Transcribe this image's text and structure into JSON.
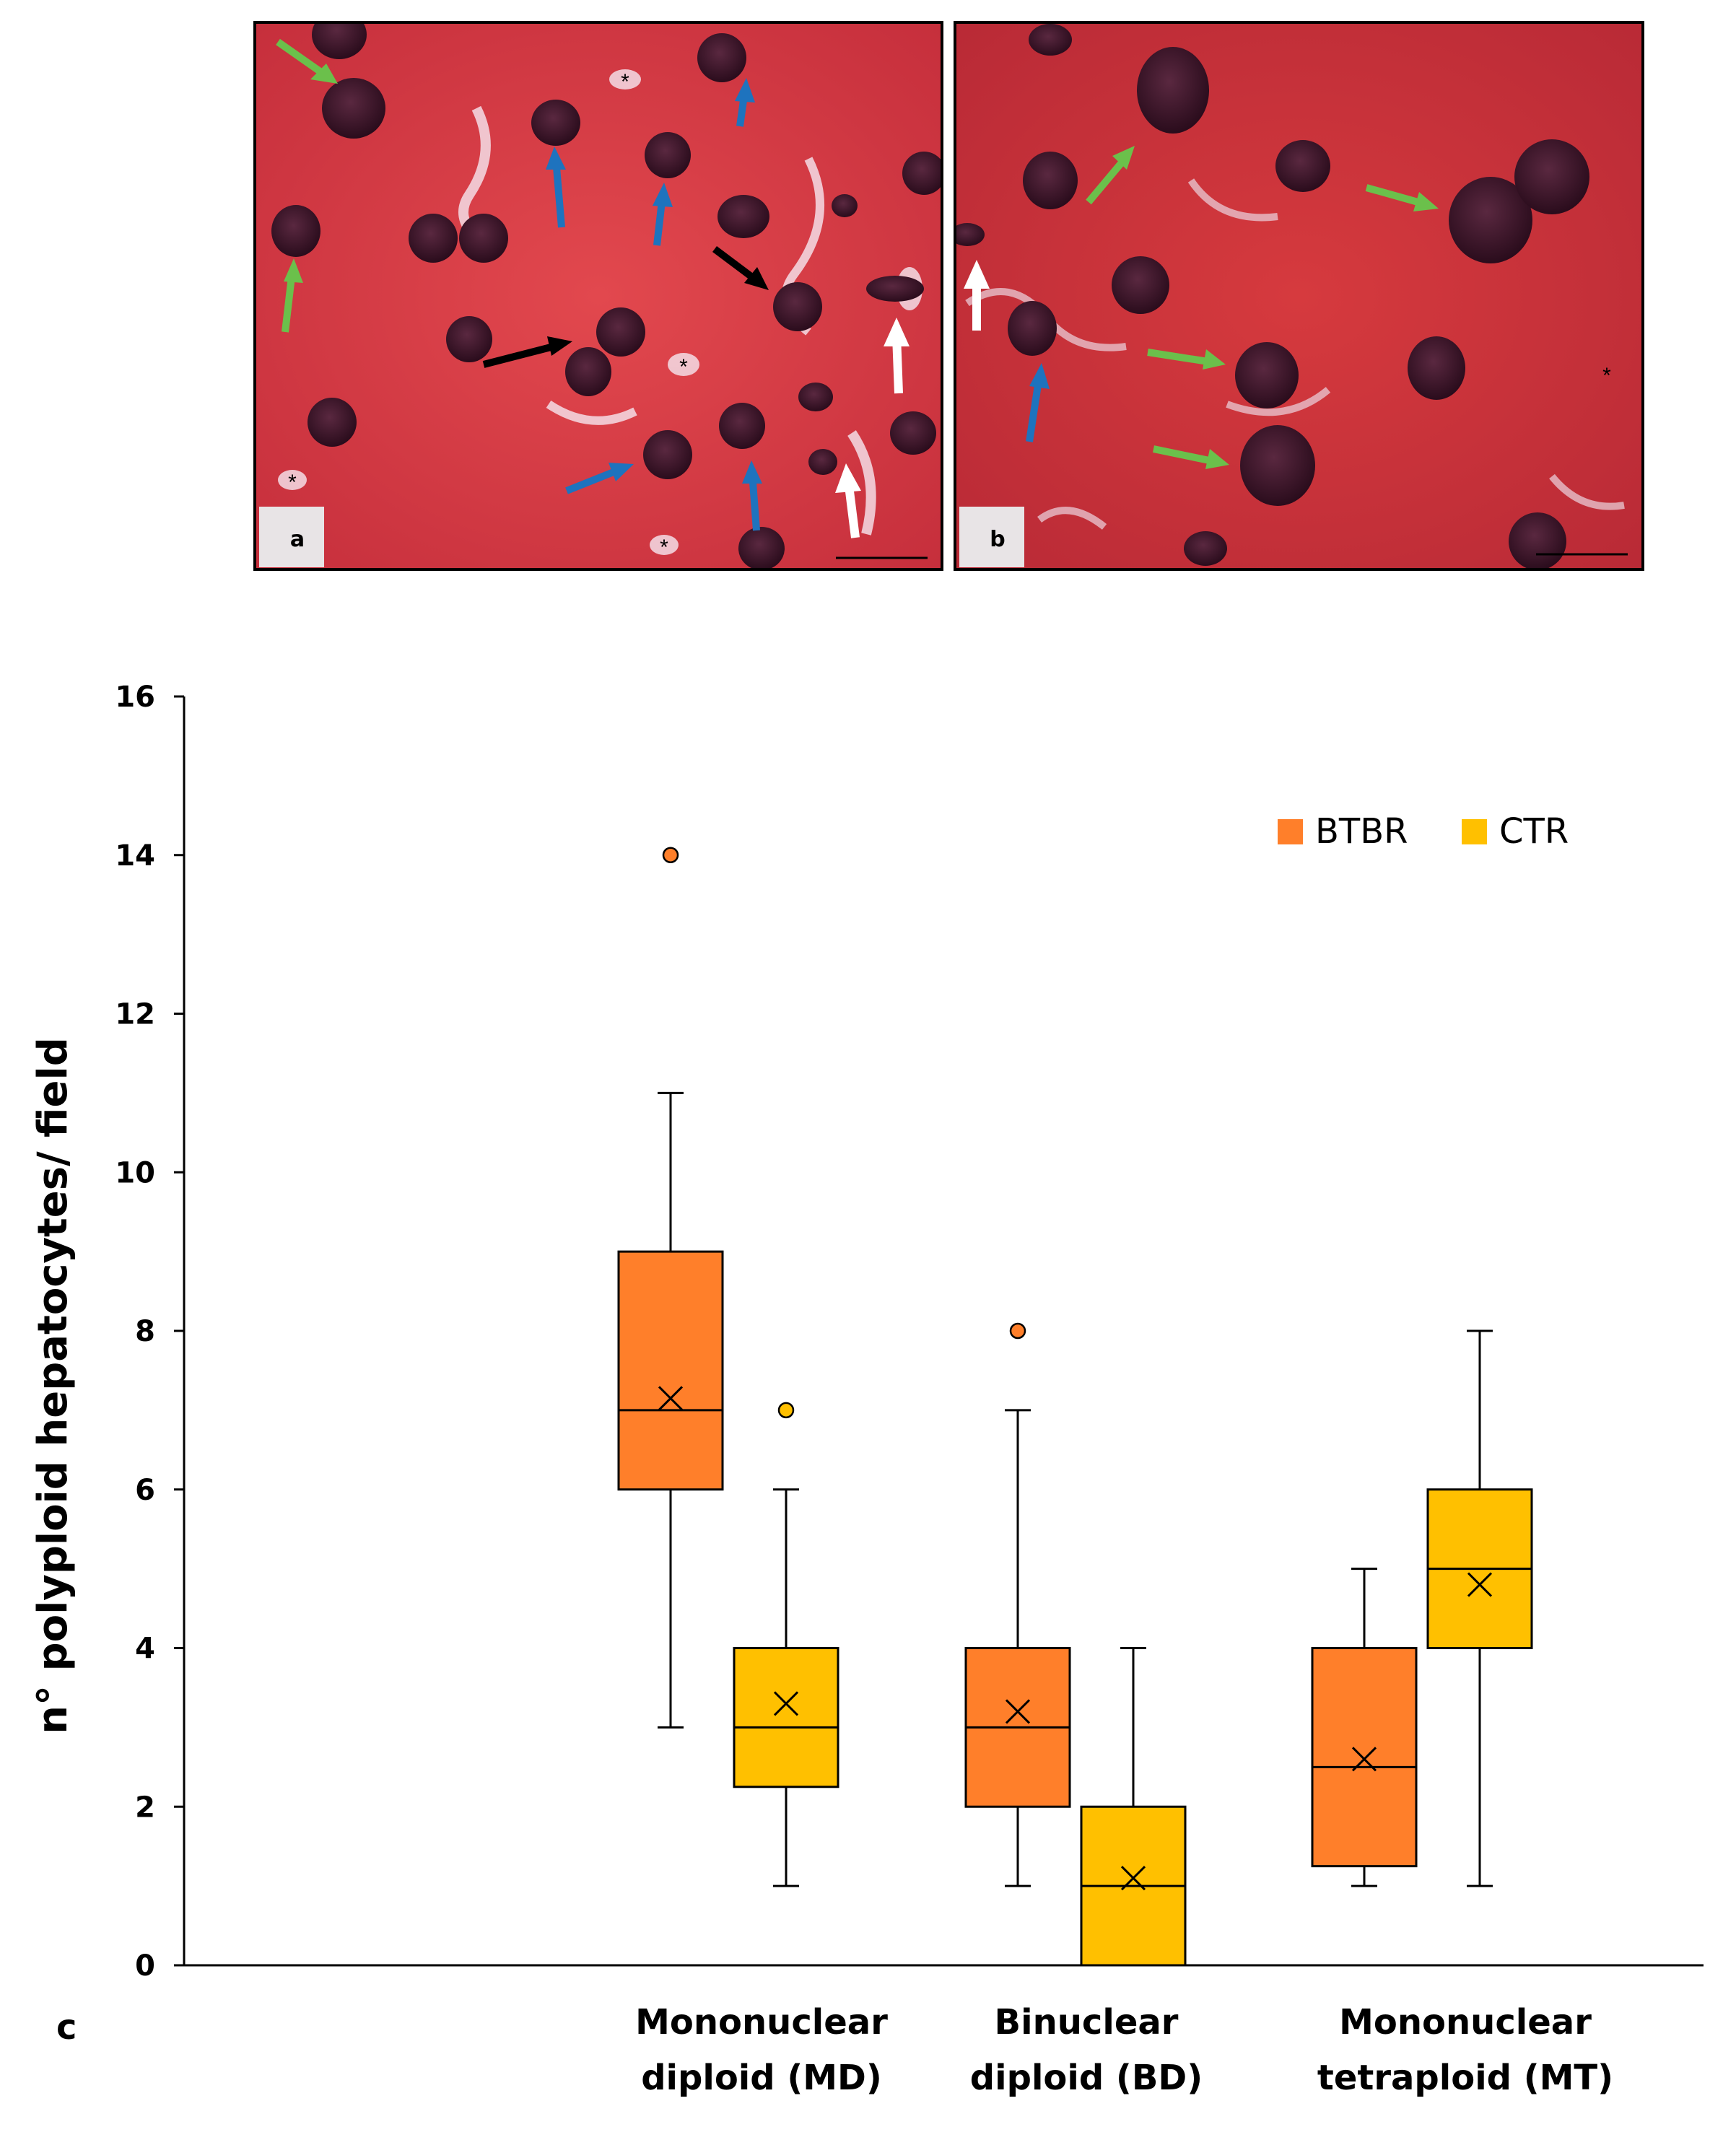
{
  "colors": {
    "btbr": "#FF7F2A",
    "ctr": "#FFC000",
    "tissue": "#D63A42",
    "nucleus": "#3A1428",
    "arrow_green": "#6BC04B",
    "arrow_blue": "#1E73BE",
    "arrow_black": "#000000",
    "arrow_white": "#FFFFFF"
  },
  "micrographs": [
    {
      "label": "a",
      "asterisk": "*"
    },
    {
      "label": "b",
      "asterisk": "*"
    }
  ],
  "panel_c_label": "c",
  "chart_data": {
    "type": "box",
    "title": "",
    "ylabel": "n° polyploid hepatocytes/ field",
    "xlabel": "",
    "ylim": [
      0,
      16
    ],
    "yticks": [
      0,
      2,
      4,
      6,
      8,
      10,
      12,
      14,
      16
    ],
    "grid": false,
    "legend": {
      "position": "top-right",
      "entries": [
        "BTBR",
        "CTR"
      ]
    },
    "categories": [
      {
        "line1": "Mononuclear",
        "line2": "diploid (MD)"
      },
      {
        "line1": "Binuclear",
        "line2": "diploid (BD)"
      },
      {
        "line1": "Mononuclear",
        "line2": "tetraploid (MT)"
      }
    ],
    "series": [
      {
        "name": "BTBR",
        "boxes": [
          {
            "min": 3,
            "q1": 6,
            "median": 7,
            "q3": 9,
            "max": 11,
            "mean": 7.15,
            "outliers": [
              14
            ]
          },
          {
            "min": 1,
            "q1": 2,
            "median": 3,
            "q3": 4,
            "max": 7,
            "mean": 3.2,
            "outliers": [
              8
            ]
          },
          {
            "min": 1,
            "q1": 1.25,
            "median": 2.5,
            "q3": 4,
            "max": 5,
            "mean": 2.6,
            "outliers": []
          }
        ]
      },
      {
        "name": "CTR",
        "boxes": [
          {
            "min": 1,
            "q1": 2.25,
            "median": 3,
            "q3": 4,
            "max": 6,
            "mean": 3.3,
            "outliers": [
              7
            ]
          },
          {
            "min": 0,
            "q1": 0,
            "median": 1,
            "q3": 2,
            "max": 4,
            "mean": 1.1,
            "outliers": []
          },
          {
            "min": 1,
            "q1": 4,
            "median": 5,
            "q3": 6,
            "max": 8,
            "mean": 4.8,
            "outliers": []
          }
        ]
      }
    ]
  }
}
